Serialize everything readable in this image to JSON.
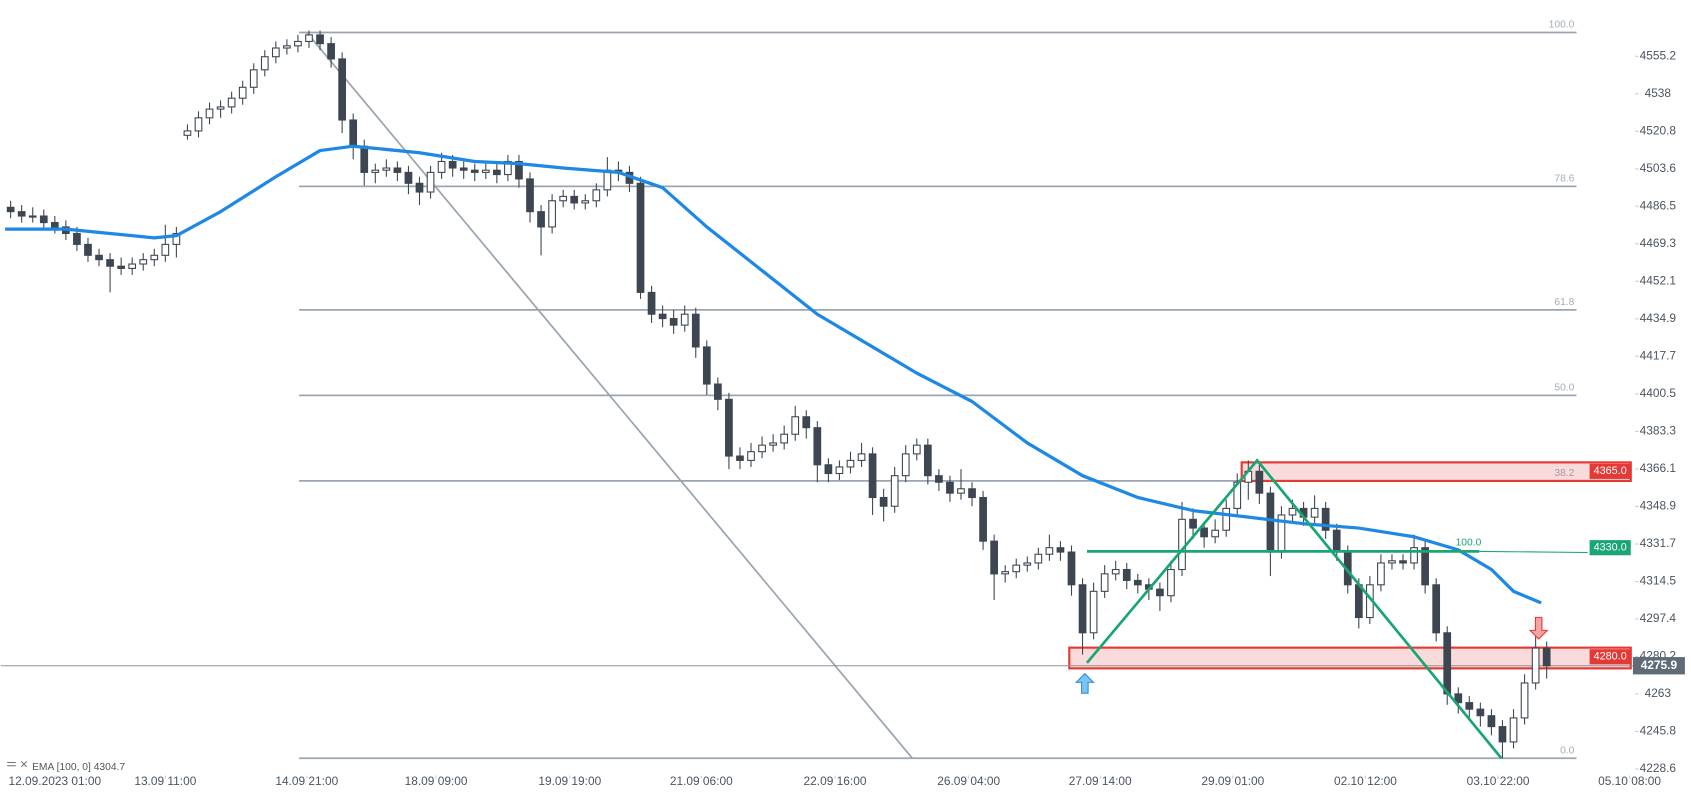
{
  "chart_data": {
    "type": "candlestick",
    "up_color": "#ffffff",
    "down_color": "#3d4651",
    "wick_color": "#3d4651",
    "xlim": [
      -0.9,
      147
    ],
    "ylim": [
      4225.6,
      4581.0
    ],
    "xticks": [
      {
        "value": 4,
        "label": "12.09.2023  01:00"
      },
      {
        "value": 14,
        "label": "13.09  11:00"
      },
      {
        "value": 26.8,
        "label": "14.09  21:00"
      },
      {
        "value": 38.5,
        "label": "18.09  09:00"
      },
      {
        "value": 50.6,
        "label": "19.09  19:00"
      },
      {
        "value": 62.5,
        "label": "21.09  06:00"
      },
      {
        "value": 74.6,
        "label": "22.09  16:00"
      },
      {
        "value": 86.7,
        "label": "26.09  04:00"
      },
      {
        "value": 98.6,
        "label": "27.09  14:00"
      },
      {
        "value": 110.6,
        "label": "29.09  01:00"
      },
      {
        "value": 122.6,
        "label": "02.10  12:00"
      },
      {
        "value": 134.6,
        "label": "03.10  22:00"
      },
      {
        "value": 146.5,
        "label": "05.10  08:00"
      }
    ],
    "yticks": [
      4555.2,
      4538.0,
      4520.8,
      4503.6,
      4486.5,
      4469.3,
      4452.1,
      4434.9,
      4417.7,
      4400.5,
      4383.3,
      4366.1,
      4348.9,
      4331.7,
      4314.5,
      4297.4,
      4280.2,
      4263.0,
      4245.8,
      4228.6
    ],
    "candles": [
      [
        4486,
        4489,
        4481,
        4484
      ],
      [
        4484,
        4487,
        4479,
        4482
      ],
      [
        4482,
        4486,
        4479,
        4482
      ],
      [
        4482,
        4485,
        4476,
        4479
      ],
      [
        4479,
        4482,
        4474,
        4477
      ],
      [
        4477,
        4480,
        4471,
        4474
      ],
      [
        4474,
        4477,
        4466,
        4469
      ],
      [
        4469,
        4472,
        4461,
        4464
      ],
      [
        4464,
        4467,
        4459,
        4462
      ],
      [
        4462,
        4465,
        4447,
        4459
      ],
      [
        4459,
        4463,
        4455,
        4458
      ],
      [
        4458,
        4463,
        4455,
        4460
      ],
      [
        4460,
        4465,
        4457,
        4462
      ],
      [
        4462,
        4467,
        4459,
        4464
      ],
      [
        4464,
        4478,
        4461,
        4469
      ],
      [
        4469,
        4477,
        4463,
        4474
      ],
      [
        4519,
        4524,
        4517,
        4521
      ],
      [
        4521,
        4530,
        4518,
        4527
      ],
      [
        4527,
        4534,
        4524,
        4531
      ],
      [
        4531,
        4535,
        4527,
        4532
      ],
      [
        4532,
        4539,
        4529,
        4536
      ],
      [
        4536,
        4544,
        4533,
        4541
      ],
      [
        4541,
        4552,
        4538,
        4549
      ],
      [
        4549,
        4558,
        4546,
        4555
      ],
      [
        4555,
        4562,
        4552,
        4559
      ],
      [
        4559,
        4563,
        4556,
        4560
      ],
      [
        4560,
        4565,
        4557,
        4562
      ],
      [
        4562,
        4567,
        4559,
        4565
      ],
      [
        4565,
        4567,
        4558,
        4561
      ],
      [
        4561,
        4564,
        4550,
        4554
      ],
      [
        4554,
        4557,
        4520,
        4526
      ],
      [
        4526,
        4529,
        4508,
        4514
      ],
      [
        4514,
        4517,
        4496,
        4502
      ],
      [
        4502,
        4506,
        4497,
        4503
      ],
      [
        4503,
        4508,
        4500,
        4504
      ],
      [
        4504,
        4507,
        4498,
        4502
      ],
      [
        4502,
        4505,
        4492,
        4497
      ],
      [
        4497,
        4500,
        4487,
        4493
      ],
      [
        4493,
        4505,
        4490,
        4502
      ],
      [
        4502,
        4511,
        4499,
        4507
      ],
      [
        4507,
        4510,
        4500,
        4504
      ],
      [
        4504,
        4507,
        4499,
        4503
      ],
      [
        4503,
        4506,
        4498,
        4502
      ],
      [
        4502,
        4507,
        4499,
        4503
      ],
      [
        4503,
        4506,
        4497,
        4501
      ],
      [
        4501,
        4510,
        4498,
        4507
      ],
      [
        4507,
        4510,
        4495,
        4499
      ],
      [
        4499,
        4502,
        4479,
        4484
      ],
      [
        4484,
        4487,
        4464,
        4477
      ],
      [
        4477,
        4492,
        4474,
        4489
      ],
      [
        4489,
        4494,
        4486,
        4491
      ],
      [
        4491,
        4494,
        4485,
        4488
      ],
      [
        4488,
        4492,
        4485,
        4489
      ],
      [
        4489,
        4497,
        4486,
        4494
      ],
      [
        4494,
        4509,
        4491,
        4503
      ],
      [
        4503,
        4507,
        4498,
        4502
      ],
      [
        4502,
        4505,
        4493,
        4497
      ],
      [
        4497,
        4500,
        4444,
        4447
      ],
      [
        4447,
        4450,
        4433,
        4437
      ],
      [
        4437,
        4441,
        4431,
        4435
      ],
      [
        4435,
        4439,
        4428,
        4432
      ],
      [
        4432,
        4441,
        4429,
        4437
      ],
      [
        4437,
        4440,
        4417,
        4422
      ],
      [
        4422,
        4425,
        4400,
        4405
      ],
      [
        4405,
        4408,
        4393,
        4398
      ],
      [
        4398,
        4401,
        4366,
        4372
      ],
      [
        4372,
        4376,
        4366,
        4370
      ],
      [
        4370,
        4378,
        4367,
        4374
      ],
      [
        4374,
        4381,
        4371,
        4377
      ],
      [
        4377,
        4382,
        4374,
        4378
      ],
      [
        4378,
        4386,
        4375,
        4382
      ],
      [
        4382,
        4395,
        4379,
        4390
      ],
      [
        4390,
        4393,
        4380,
        4385
      ],
      [
        4385,
        4388,
        4360,
        4368
      ],
      [
        4368,
        4371,
        4360,
        4364
      ],
      [
        4364,
        4370,
        4361,
        4367
      ],
      [
        4367,
        4374,
        4364,
        4370
      ],
      [
        4370,
        4378,
        4367,
        4373
      ],
      [
        4373,
        4376,
        4345,
        4353
      ],
      [
        4353,
        4357,
        4342,
        4349
      ],
      [
        4349,
        4367,
        4346,
        4363
      ],
      [
        4363,
        4377,
        4360,
        4373
      ],
      [
        4373,
        4380,
        4370,
        4377
      ],
      [
        4377,
        4380,
        4359,
        4363
      ],
      [
        4363,
        4366,
        4356,
        4360
      ],
      [
        4360,
        4363,
        4351,
        4355
      ],
      [
        4355,
        4366,
        4352,
        4357
      ],
      [
        4357,
        4360,
        4349,
        4353
      ],
      [
        4353,
        4356,
        4329,
        4333
      ],
      [
        4333,
        4336,
        4306,
        4318
      ],
      [
        4318,
        4322,
        4314,
        4319
      ],
      [
        4319,
        4325,
        4316,
        4322
      ],
      [
        4322,
        4326,
        4319,
        4323
      ],
      [
        4323,
        4330,
        4320,
        4327
      ],
      [
        4327,
        4336,
        4324,
        4330
      ],
      [
        4330,
        4333,
        4324,
        4328
      ],
      [
        4328,
        4331,
        4308,
        4313
      ],
      [
        4313,
        4316,
        4281,
        4291
      ],
      [
        4291,
        4314,
        4288,
        4310
      ],
      [
        4310,
        4322,
        4307,
        4318
      ],
      [
        4318,
        4324,
        4315,
        4320
      ],
      [
        4320,
        4323,
        4311,
        4315
      ],
      [
        4315,
        4318,
        4309,
        4313
      ],
      [
        4313,
        4316,
        4306,
        4311
      ],
      [
        4311,
        4314,
        4301,
        4308
      ],
      [
        4308,
        4324,
        4305,
        4320
      ],
      [
        4320,
        4351,
        4317,
        4343
      ],
      [
        4343,
        4348,
        4334,
        4339
      ],
      [
        4339,
        4342,
        4330,
        4335
      ],
      [
        4335,
        4343,
        4332,
        4338
      ],
      [
        4338,
        4352,
        4335,
        4348
      ],
      [
        4348,
        4364,
        4345,
        4360
      ],
      [
        4360,
        4370,
        4352,
        4365
      ],
      [
        4365,
        4368,
        4350,
        4355
      ],
      [
        4355,
        4358,
        4317,
        4328
      ],
      [
        4328,
        4349,
        4325,
        4345
      ],
      [
        4345,
        4352,
        4342,
        4348
      ],
      [
        4348,
        4351,
        4340,
        4344
      ],
      [
        4344,
        4354,
        4341,
        4348
      ],
      [
        4348,
        4351,
        4334,
        4338
      ],
      [
        4338,
        4341,
        4324,
        4328
      ],
      [
        4328,
        4331,
        4309,
        4313
      ],
      [
        4313,
        4316,
        4293,
        4298
      ],
      [
        4298,
        4317,
        4295,
        4313
      ],
      [
        4313,
        4327,
        4310,
        4323
      ],
      [
        4323,
        4327,
        4320,
        4324
      ],
      [
        4324,
        4327,
        4320,
        4323
      ],
      [
        4323,
        4336,
        4320,
        4330
      ],
      [
        4330,
        4333,
        4309,
        4313
      ],
      [
        4313,
        4316,
        4287,
        4291
      ],
      [
        4291,
        4294,
        4258,
        4263
      ],
      [
        4263,
        4266,
        4254,
        4259
      ],
      [
        4259,
        4262,
        4251,
        4256
      ],
      [
        4256,
        4259,
        4248,
        4253
      ],
      [
        4253,
        4256,
        4244,
        4248
      ],
      [
        4248,
        4251,
        4233.5,
        4241
      ],
      [
        4241,
        4256,
        4238,
        4252
      ],
      [
        4252,
        4272,
        4249,
        4268
      ],
      [
        4268,
        4291,
        4265,
        4284
      ],
      [
        4284,
        4287,
        4270,
        4275.9
      ]
    ],
    "ema": {
      "name": "EMA [100, 0]",
      "color": "#1e88e5",
      "x": [
        -0.5,
        5,
        9,
        13,
        15,
        19,
        24,
        28,
        31,
        37,
        42,
        46,
        50,
        55,
        59,
        63,
        68,
        73,
        78,
        82,
        87,
        92,
        97,
        102,
        107,
        112,
        117,
        122,
        127,
        131,
        134,
        136,
        138.5
      ],
      "values": [
        4476,
        4476,
        4474,
        4472,
        4473,
        4484,
        4500,
        4512,
        4514,
        4511,
        4507,
        4506,
        4504,
        4502,
        4495,
        4477,
        4457,
        4437,
        4422,
        4410,
        4397,
        4378,
        4363,
        4353,
        4347,
        4344,
        4341,
        4339,
        4335,
        4329,
        4320,
        4310,
        4304.7
      ]
    },
    "fibonacci": {
      "color": "#9aa5b1",
      "x": [
        26.1,
        141.7
      ],
      "levels": [
        {
          "value": 4566.1,
          "label": "100.0"
        },
        {
          "value": 4495.6,
          "label": "78.6"
        },
        {
          "value": 4439.0,
          "label": "61.8"
        },
        {
          "value": 4399.8,
          "label": "50.0"
        },
        {
          "value": 4360.6,
          "label": "38.2"
        },
        {
          "value": 4233.5,
          "label": "0.0"
        }
      ]
    },
    "trend_line": {
      "color": "#9aa5b1",
      "x": [
        26.8,
        81.6
      ],
      "values": [
        4566.1,
        4233.5
      ]
    },
    "pattern": {
      "color": "#1aa574",
      "x": [
        97.4,
        112.8,
        134.9
      ],
      "values": [
        4277.2,
        4370.0,
        4233.5
      ]
    },
    "level_line": {
      "name": "100.0",
      "color": "#1aa574",
      "price": 4328.3,
      "x": [
        97.4,
        132.9,
        142.7
      ],
      "tag": {
        "value": 4330,
        "label": "4330.0"
      }
    },
    "zones": [
      {
        "color": "#e53935",
        "top": 4369.1,
        "bottom": 4360.6,
        "x_start": 111.4,
        "tag": {
          "value": 4365,
          "label": "4365.0"
        }
      },
      {
        "color": "#e53935",
        "top": 4284.2,
        "bottom": 4274.7,
        "x_start": 95.8,
        "tag": {
          "value": 4280,
          "label": "4280.0"
        }
      }
    ]
  }
}
